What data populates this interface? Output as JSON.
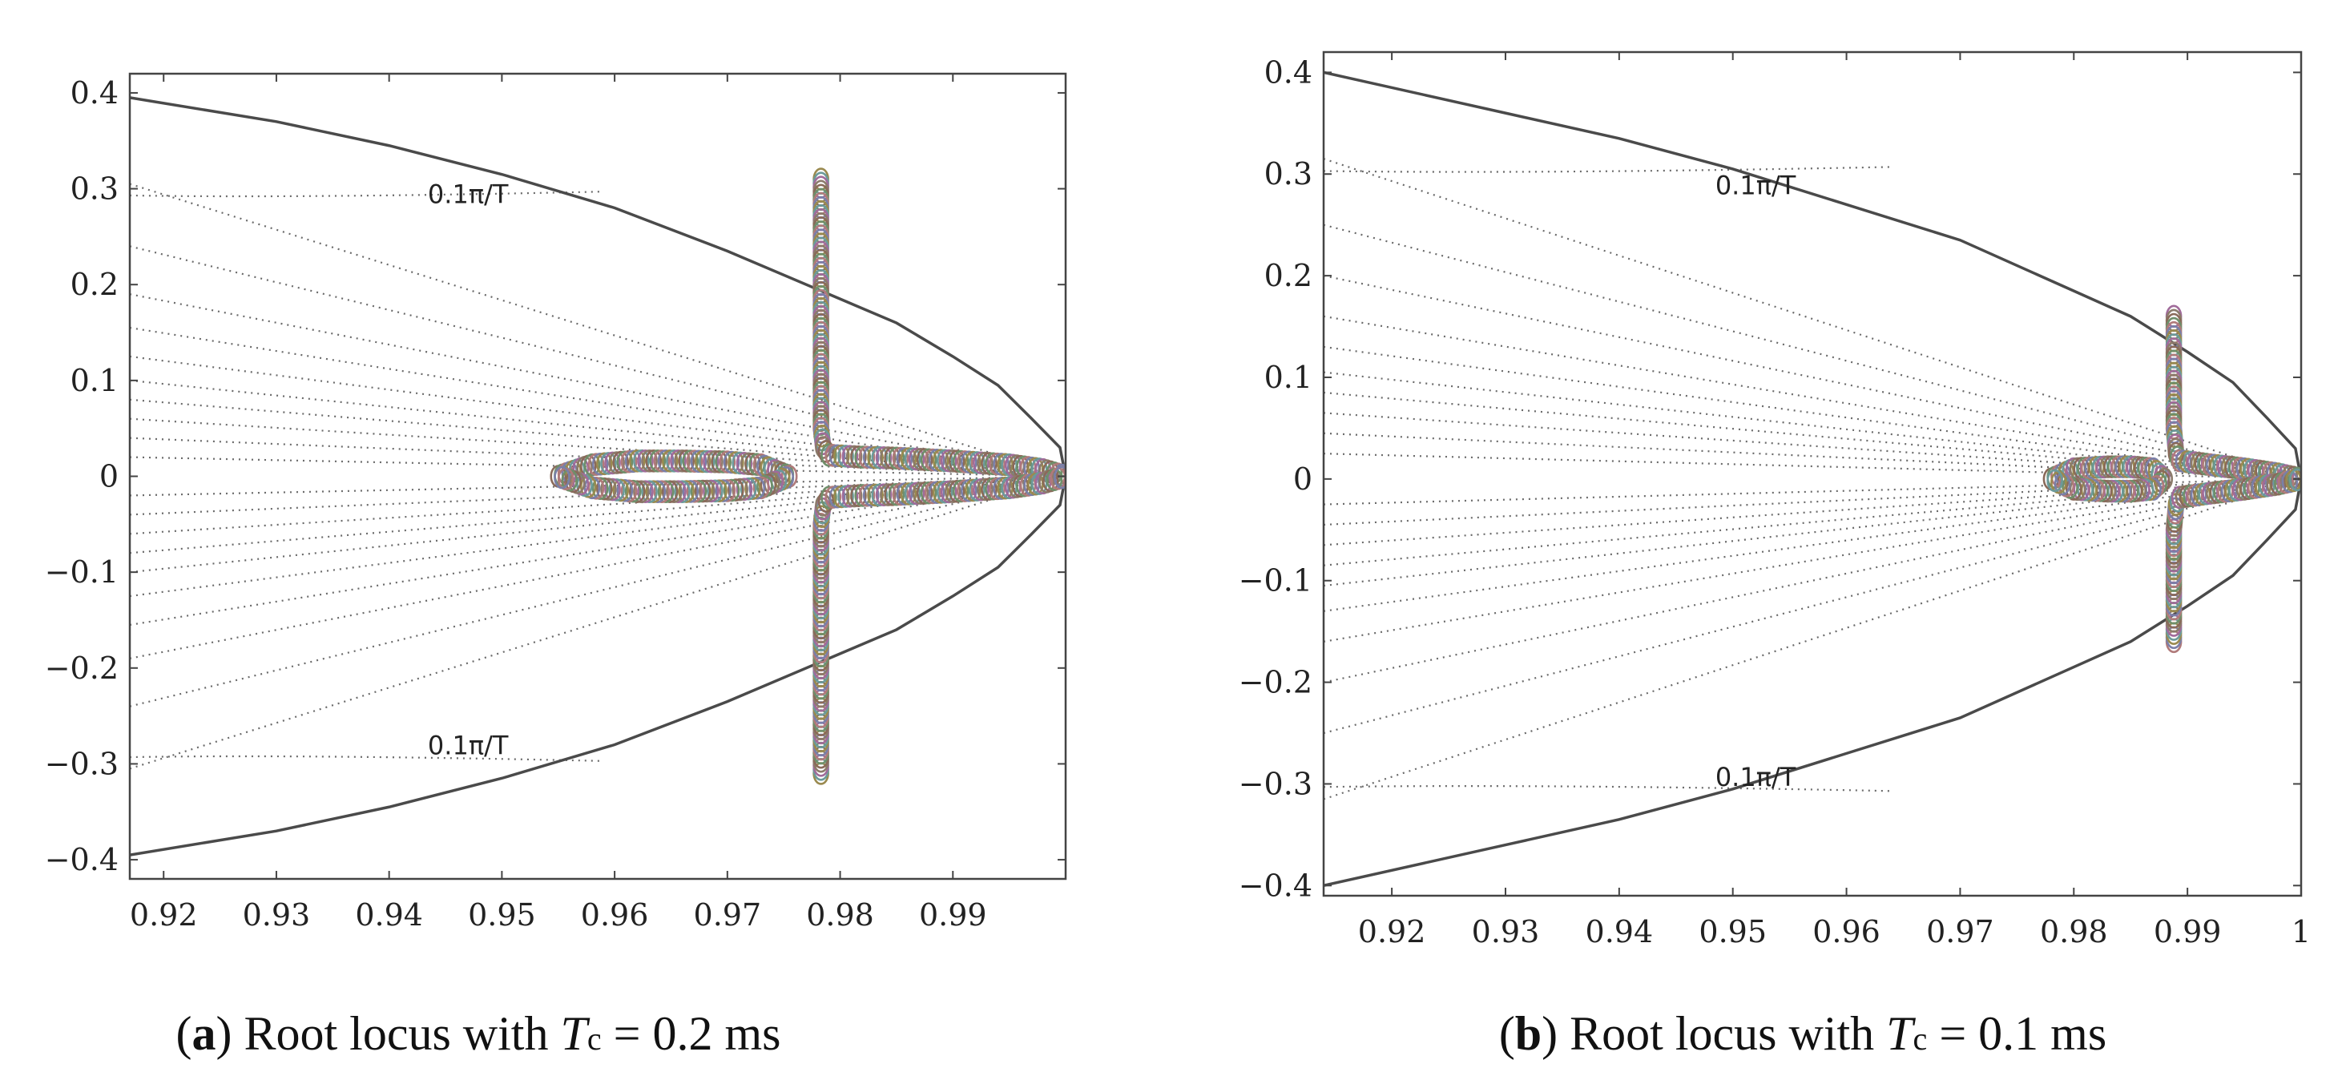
{
  "chart_data": [
    {
      "type": "scatter",
      "panel": "a",
      "caption": {
        "letter": "a",
        "text": "Root locus with",
        "param": "T",
        "param_sub": "c",
        "value": "= 0.2 ms"
      },
      "xlim": [
        0.917,
        1.0
      ],
      "ylim": [
        -0.42,
        0.42
      ],
      "xticks": [
        0.92,
        0.93,
        0.94,
        0.95,
        0.96,
        0.97,
        0.98,
        0.99
      ],
      "xtick_labels": [
        "0.92",
        "0.93",
        "0.94",
        "0.95",
        "0.96",
        "0.97",
        "0.98",
        "0.99"
      ],
      "yticks": [
        0.4,
        0.3,
        0.2,
        0.1,
        0,
        -0.1,
        -0.2,
        -0.3,
        -0.4
      ],
      "ytick_labels": [
        "0.4",
        "0.3",
        "0.2",
        "0.1",
        "0",
        "−0.1",
        "−0.2",
        "−0.3",
        "−0.4"
      ],
      "annotations": [
        {
          "text": "0.1π/T",
          "x": 0.947,
          "y": 0.285
        },
        {
          "text": "0.1π/T",
          "x": 0.947,
          "y": -0.29
        }
      ],
      "boundary": {
        "x": [
          0.917,
          0.93,
          0.94,
          0.95,
          0.96,
          0.97,
          0.98,
          0.985,
          0.99,
          0.994,
          0.997,
          0.9995,
          1.0
        ],
        "y": [
          0.395,
          0.37,
          0.345,
          0.315,
          0.28,
          0.235,
          0.185,
          0.16,
          0.125,
          0.095,
          0.06,
          0.03,
          0.0
        ]
      },
      "damping_lines_y_at_left": [
        0.305,
        0.24,
        0.19,
        0.155,
        0.125,
        0.1,
        0.08,
        0.06,
        0.04,
        0.02
      ],
      "loci": [
        {
          "name": "real-axis loop",
          "x": [
            0.955,
            0.958,
            0.962,
            0.966,
            0.97,
            0.973,
            0.9755,
            0.973,
            0.97,
            0.966,
            0.962,
            0.958,
            0.955
          ],
          "y": [
            0.0,
            0.012,
            0.016,
            0.016,
            0.015,
            0.012,
            0.0,
            -0.012,
            -0.015,
            -0.016,
            -0.016,
            -0.012,
            0.0
          ]
        },
        {
          "name": "upper vertical branch",
          "x": [
            0.9783,
            0.9783,
            0.9783,
            0.9783,
            0.9785,
            0.979
          ],
          "y": [
            0.31,
            0.2,
            0.1,
            0.05,
            0.03,
            0.022
          ]
        },
        {
          "name": "upper horizontal branch",
          "x": [
            0.979,
            0.982,
            0.985,
            0.99,
            0.995,
            0.998,
            1.0
          ],
          "y": [
            0.022,
            0.02,
            0.019,
            0.016,
            0.012,
            0.007,
            0.0
          ]
        },
        {
          "name": "lower vertical branch",
          "x": [
            0.9783,
            0.9783,
            0.9783,
            0.9783,
            0.9785,
            0.979
          ],
          "y": [
            -0.31,
            -0.2,
            -0.1,
            -0.05,
            -0.03,
            -0.022
          ]
        },
        {
          "name": "lower horizontal branch",
          "x": [
            0.979,
            0.982,
            0.985,
            0.99,
            0.995,
            0.998,
            1.0
          ],
          "y": [
            -0.022,
            -0.02,
            -0.019,
            -0.016,
            -0.012,
            -0.007,
            0.0
          ]
        }
      ]
    },
    {
      "type": "scatter",
      "panel": "b",
      "caption": {
        "letter": "b",
        "text": "Root locus with",
        "param": "T",
        "param_sub": "c",
        "value": "= 0.1 ms"
      },
      "xlim": [
        0.914,
        1.0
      ],
      "ylim": [
        -0.41,
        0.42
      ],
      "xticks": [
        0.92,
        0.93,
        0.94,
        0.95,
        0.96,
        0.97,
        0.98,
        0.99,
        1.0
      ],
      "xtick_labels": [
        "0.92",
        "0.93",
        "0.94",
        "0.95",
        "0.96",
        "0.97",
        "0.98",
        "0.99",
        "1"
      ],
      "yticks": [
        0.4,
        0.3,
        0.2,
        0.1,
        0,
        -0.1,
        -0.2,
        -0.3,
        -0.4
      ],
      "ytick_labels": [
        "0.4",
        "0.3",
        "0.2",
        "0.1",
        "0",
        "−0.1",
        "−0.2",
        "−0.3",
        "−0.4"
      ],
      "annotations": [
        {
          "text": "0.1π/T",
          "x": 0.952,
          "y": 0.28
        },
        {
          "text": "0.1π/T",
          "x": 0.952,
          "y": -0.302
        }
      ],
      "boundary": {
        "x": [
          0.914,
          0.93,
          0.94,
          0.95,
          0.96,
          0.97,
          0.98,
          0.985,
          0.99,
          0.994,
          0.997,
          0.9995,
          1.0
        ],
        "y": [
          0.4,
          0.36,
          0.335,
          0.305,
          0.27,
          0.235,
          0.185,
          0.16,
          0.125,
          0.095,
          0.06,
          0.03,
          0.0
        ]
      },
      "damping_lines_y_at_left": [
        0.315,
        0.25,
        0.2,
        0.16,
        0.13,
        0.105,
        0.085,
        0.065,
        0.045,
        0.025
      ],
      "loci": [
        {
          "name": "real-axis loop",
          "x": [
            0.978,
            0.98,
            0.983,
            0.985,
            0.987,
            0.988,
            0.987,
            0.985,
            0.983,
            0.98,
            0.978
          ],
          "y": [
            0.0,
            0.01,
            0.012,
            0.012,
            0.01,
            0.0,
            -0.01,
            -0.012,
            -0.012,
            -0.01,
            0.0
          ]
        },
        {
          "name": "upper vertical branch",
          "x": [
            0.9888,
            0.9888,
            0.9888,
            0.989,
            0.9893
          ],
          "y": [
            0.16,
            0.1,
            0.05,
            0.025,
            0.018
          ]
        },
        {
          "name": "upper horizontal branch",
          "x": [
            0.9893,
            0.992,
            0.995,
            0.998,
            1.0
          ],
          "y": [
            0.018,
            0.014,
            0.01,
            0.005,
            0.0
          ]
        },
        {
          "name": "lower vertical branch",
          "x": [
            0.9888,
            0.9888,
            0.9888,
            0.989,
            0.9893
          ],
          "y": [
            -0.16,
            -0.1,
            -0.05,
            -0.025,
            -0.018
          ]
        },
        {
          "name": "lower horizontal branch",
          "x": [
            0.9893,
            0.992,
            0.995,
            0.998,
            1.0
          ],
          "y": [
            -0.018,
            -0.014,
            -0.01,
            -0.005,
            0.0
          ]
        }
      ]
    }
  ],
  "colors": {
    "axis": "#444444",
    "boundary": "#4a4a4a",
    "damping": "#6a6a6a",
    "markers": [
      "#8a6a5a",
      "#6f8f6a",
      "#b07a7a",
      "#7a7fa8",
      "#9a8a4f",
      "#6b9a9a",
      "#a06b9a",
      "#8b7b6b"
    ]
  }
}
